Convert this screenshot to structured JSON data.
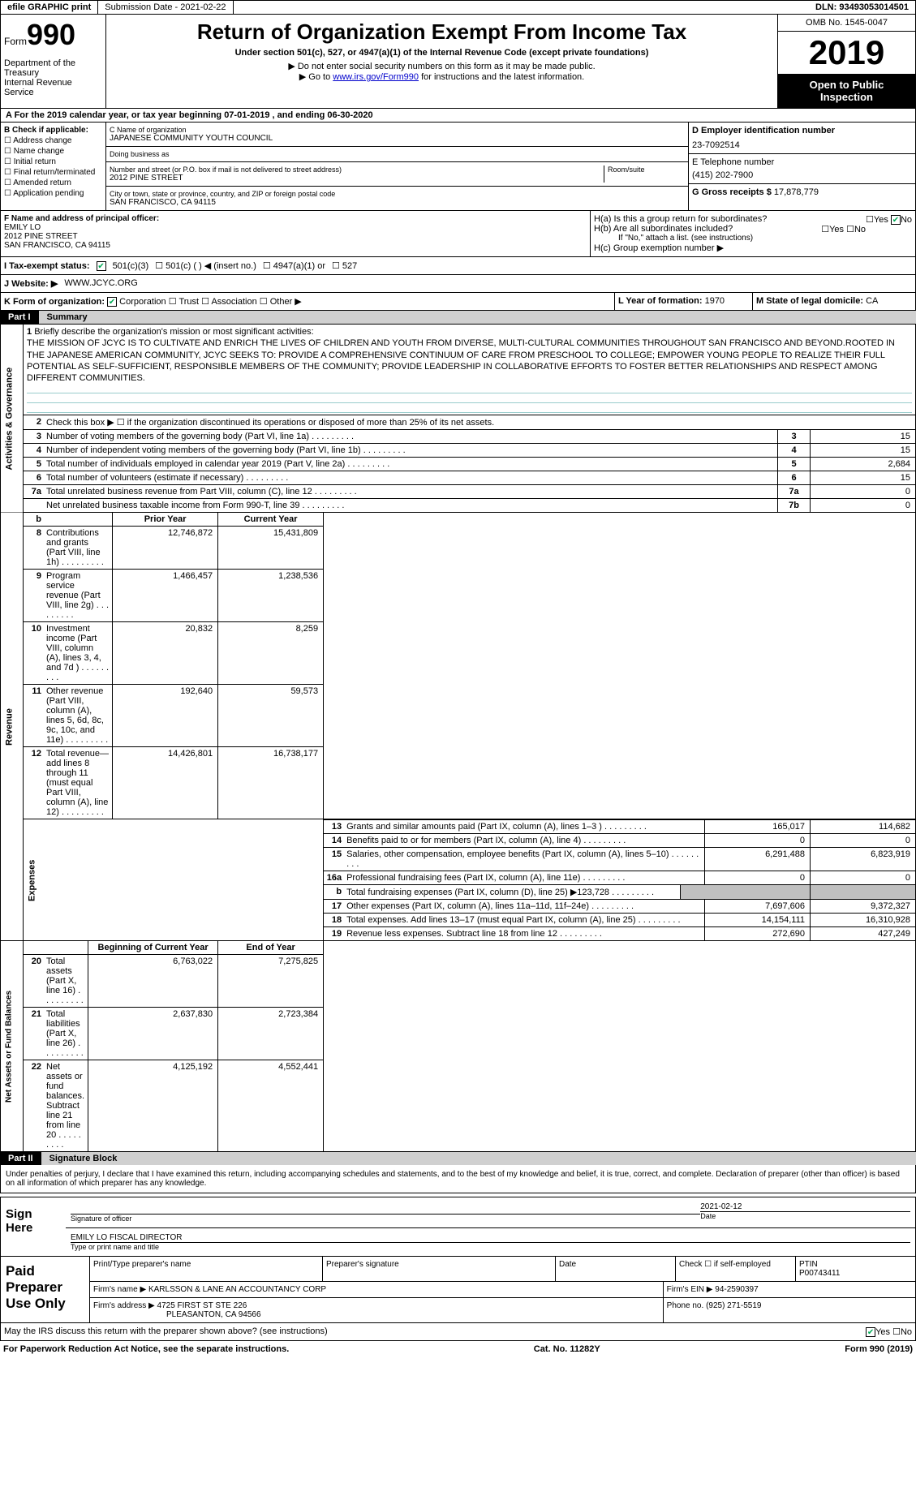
{
  "topbar": {
    "efile": "efile GRAPHIC print",
    "submission": "Submission Date - 2021-02-22",
    "dln": "DLN: 93493053014501"
  },
  "header": {
    "form_label": "Form",
    "form_num": "990",
    "dept": "Department of the Treasury\nInternal Revenue Service",
    "title": "Return of Organization Exempt From Income Tax",
    "subtitle": "Under section 501(c), 527, or 4947(a)(1) of the Internal Revenue Code (except private foundations)",
    "note1": "▶ Do not enter social security numbers on this form as it may be made public.",
    "note2_pre": "▶ Go to ",
    "note2_link": "www.irs.gov/Form990",
    "note2_post": " for instructions and the latest information.",
    "omb": "OMB No. 1545-0047",
    "year": "2019",
    "open_public": "Open to Public Inspection"
  },
  "section_a": "A  For the 2019 calendar year, or tax year beginning 07-01-2019   , and ending 06-30-2020",
  "checkB": {
    "label": "B Check if applicable:",
    "opts": [
      "Address change",
      "Name change",
      "Initial return",
      "Final return/terminated",
      "Amended return",
      "Application pending"
    ]
  },
  "org": {
    "c_label": "C Name of organization",
    "name": "JAPANESE COMMUNITY YOUTH COUNCIL",
    "dba_label": "Doing business as",
    "street_label": "Number and street (or P.O. box if mail is not delivered to street address)",
    "street": "2012 PINE STREET",
    "room_label": "Room/suite",
    "city_label": "City or town, state or province, country, and ZIP or foreign postal code",
    "city": "SAN FRANCISCO, CA  94115"
  },
  "right": {
    "d_label": "D Employer identification number",
    "ein": "23-7092514",
    "e_label": "E Telephone number",
    "phone": "(415) 202-7900",
    "g_label": "G Gross receipts $",
    "gross": "17,878,779"
  },
  "officer": {
    "f_label": "F Name and address of principal officer:",
    "name": "EMILY LO",
    "street": "2012 PINE STREET",
    "city": "SAN FRANCISCO, CA  94115"
  },
  "h": {
    "ha": "H(a)  Is this a group return for subordinates?",
    "hb": "H(b)  Are all subordinates included?",
    "hb_note": "If \"No,\" attach a list. (see instructions)",
    "hc": "H(c)  Group exemption number ▶",
    "yes": "Yes",
    "no": "No"
  },
  "status": {
    "label": "I   Tax-exempt status:",
    "opt1": "501(c)(3)",
    "opt2": "501(c) (  ) ◀ (insert no.)",
    "opt3": "4947(a)(1) or",
    "opt4": "527"
  },
  "website": {
    "label": "J  Website: ▶",
    "value": "WWW.JCYC.ORG"
  },
  "k": {
    "label": "K Form of organization:",
    "corp": "Corporation",
    "trust": "Trust",
    "assoc": "Association",
    "other": "Other ▶"
  },
  "l": {
    "label": "L Year of formation:",
    "value": "1970"
  },
  "m": {
    "label": "M State of legal domicile:",
    "value": "CA"
  },
  "part1": {
    "num": "Part I",
    "title": "Summary",
    "line1": "Briefly describe the organization's mission or most significant activities:",
    "mission": "THE MISSION OF JCYC IS TO CULTIVATE AND ENRICH THE LIVES OF CHILDREN AND YOUTH FROM DIVERSE, MULTI-CULTURAL COMMUNITIES THROUGHOUT SAN FRANCISCO AND BEYOND.ROOTED IN THE JAPANESE AMERICAN COMMUNITY, JCYC SEEKS TO: PROVIDE A COMPREHENSIVE CONTINUUM OF CARE FROM PRESCHOOL TO COLLEGE; EMPOWER YOUNG PEOPLE TO REALIZE THEIR FULL POTENTIAL AS SELF-SUFFICIENT, RESPONSIBLE MEMBERS OF THE COMMUNITY; PROVIDE LEADERSHIP IN COLLABORATIVE EFFORTS TO FOSTER BETTER RELATIONSHIPS AND RESPECT AMONG DIFFERENT COMMUNITIES.",
    "line2": "Check this box ▶ ☐  if the organization discontinued its operations or disposed of more than 25% of its net assets.",
    "rows_ag": [
      {
        "n": "3",
        "t": "Number of voting members of the governing body (Part VI, line 1a)",
        "c": "3",
        "v": "15"
      },
      {
        "n": "4",
        "t": "Number of independent voting members of the governing body (Part VI, line 1b)",
        "c": "4",
        "v": "15"
      },
      {
        "n": "5",
        "t": "Total number of individuals employed in calendar year 2019 (Part V, line 2a)",
        "c": "5",
        "v": "2,684"
      },
      {
        "n": "6",
        "t": "Total number of volunteers (estimate if necessary)",
        "c": "6",
        "v": "15"
      },
      {
        "n": "7a",
        "t": "Total unrelated business revenue from Part VIII, column (C), line 12",
        "c": "7a",
        "v": "0"
      },
      {
        "n": "",
        "t": "Net unrelated business taxable income from Form 990-T, line 39",
        "c": "7b",
        "v": "0"
      }
    ],
    "prior_year": "Prior Year",
    "current_year": "Current Year",
    "revenue_label": "Revenue",
    "revenue": [
      {
        "n": "8",
        "t": "Contributions and grants (Part VIII, line 1h)",
        "p": "12,746,872",
        "c": "15,431,809"
      },
      {
        "n": "9",
        "t": "Program service revenue (Part VIII, line 2g)",
        "p": "1,466,457",
        "c": "1,238,536"
      },
      {
        "n": "10",
        "t": "Investment income (Part VIII, column (A), lines 3, 4, and 7d )",
        "p": "20,832",
        "c": "8,259"
      },
      {
        "n": "11",
        "t": "Other revenue (Part VIII, column (A), lines 5, 6d, 8c, 9c, 10c, and 11e)",
        "p": "192,640",
        "c": "59,573"
      },
      {
        "n": "12",
        "t": "Total revenue—add lines 8 through 11 (must equal Part VIII, column (A), line 12)",
        "p": "14,426,801",
        "c": "16,738,177"
      }
    ],
    "expenses_label": "Expenses",
    "expenses": [
      {
        "n": "13",
        "t": "Grants and similar amounts paid (Part IX, column (A), lines 1–3 )",
        "p": "165,017",
        "c": "114,682"
      },
      {
        "n": "14",
        "t": "Benefits paid to or for members (Part IX, column (A), line 4)",
        "p": "0",
        "c": "0"
      },
      {
        "n": "15",
        "t": "Salaries, other compensation, employee benefits (Part IX, column (A), lines 5–10)",
        "p": "6,291,488",
        "c": "6,823,919"
      },
      {
        "n": "16a",
        "t": "Professional fundraising fees (Part IX, column (A), line 11e)",
        "p": "0",
        "c": "0"
      },
      {
        "n": "b",
        "t": "Total fundraising expenses (Part IX, column (D), line 25) ▶123,728",
        "p": "",
        "c": "",
        "grey": true
      },
      {
        "n": "17",
        "t": "Other expenses (Part IX, column (A), lines 11a–11d, 11f–24e)",
        "p": "7,697,606",
        "c": "9,372,327"
      },
      {
        "n": "18",
        "t": "Total expenses. Add lines 13–17 (must equal Part IX, column (A), line 25)",
        "p": "14,154,111",
        "c": "16,310,928"
      },
      {
        "n": "19",
        "t": "Revenue less expenses. Subtract line 18 from line 12",
        "p": "272,690",
        "c": "427,249"
      }
    ],
    "net_label": "Net Assets or Fund Balances",
    "begin_year": "Beginning of Current Year",
    "end_year": "End of Year",
    "net": [
      {
        "n": "20",
        "t": "Total assets (Part X, line 16)",
        "p": "6,763,022",
        "c": "7,275,825"
      },
      {
        "n": "21",
        "t": "Total liabilities (Part X, line 26)",
        "p": "2,637,830",
        "c": "2,723,384"
      },
      {
        "n": "22",
        "t": "Net assets or fund balances. Subtract line 21 from line 20",
        "p": "4,125,192",
        "c": "4,552,441"
      }
    ]
  },
  "part2": {
    "num": "Part II",
    "title": "Signature Block",
    "declaration": "Under penalties of perjury, I declare that I have examined this return, including accompanying schedules and statements, and to the best of my knowledge and belief, it is true, correct, and complete. Declaration of preparer (other than officer) is based on all information of which preparer has any knowledge.",
    "sign_here": "Sign Here",
    "sig_officer": "Signature of officer",
    "sig_date": "2021-02-12",
    "date_lbl": "Date",
    "name_title": "EMILY LO  FISCAL DIRECTOR",
    "name_title_lbl": "Type or print name and title",
    "paid_preparer": "Paid Preparer Use Only",
    "prep_name_lbl": "Print/Type preparer's name",
    "prep_sig_lbl": "Preparer's signature",
    "prep_date_lbl": "Date",
    "prep_check_lbl": "Check ☐ if self-employed",
    "ptin_lbl": "PTIN",
    "ptin": "P00743411",
    "firm_name_lbl": "Firm's name    ▶",
    "firm_name": "KARLSSON & LANE AN ACCOUNTANCY CORP",
    "firm_ein_lbl": "Firm's EIN ▶",
    "firm_ein": "94-2590397",
    "firm_addr_lbl": "Firm's address ▶",
    "firm_addr1": "4725 FIRST ST STE 226",
    "firm_addr2": "PLEASANTON, CA  94566",
    "phone_lbl": "Phone no.",
    "phone": "(925) 271-5519",
    "discuss": "May the IRS discuss this return with the preparer shown above? (see instructions)",
    "yes": "Yes",
    "no": "No"
  },
  "footer": {
    "paperwork": "For Paperwork Reduction Act Notice, see the separate instructions.",
    "cat": "Cat. No. 11282Y",
    "form": "Form 990 (2019)"
  }
}
